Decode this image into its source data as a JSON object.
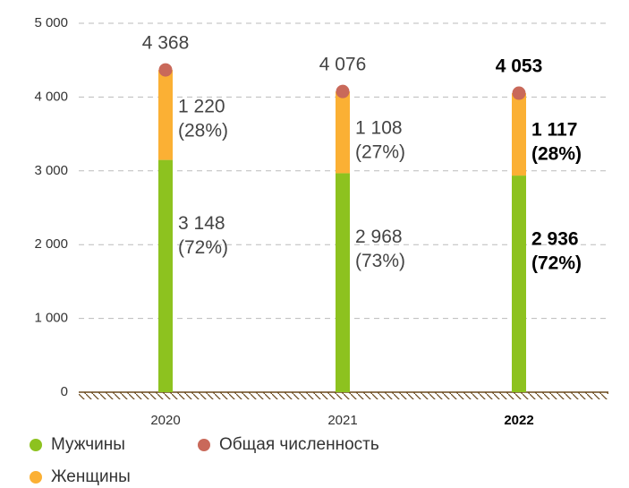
{
  "chart_data": {
    "type": "stacked_bar",
    "categories": [
      "2020",
      "2021",
      "2022"
    ],
    "series": [
      {
        "name": "Мужчины",
        "color": "#8dc21f",
        "values": [
          3148,
          2968,
          2936
        ],
        "value_labels": [
          "3 148",
          "2 968",
          "2 936"
        ],
        "percent_labels": [
          "(72%)",
          "(73%)",
          "(72%)"
        ]
      },
      {
        "name": "Женщины",
        "color": "#fbb034",
        "values": [
          1220,
          1108,
          1117
        ],
        "value_labels": [
          "1 220",
          "1 108",
          "1 117"
        ],
        "percent_labels": [
          "(28%)",
          "(27%)",
          "(28%)"
        ]
      }
    ],
    "total": {
      "name": "Общая численность",
      "color": "#c9695a",
      "values": [
        4368,
        4076,
        4053
      ],
      "value_labels": [
        "4 368",
        "4 076",
        "4 053"
      ]
    },
    "ylim": [
      0,
      5000
    ],
    "yticks": [
      0,
      {
        "value": 1000,
        "label": "1 000"
      },
      {
        "value": 2000,
        "label": "2 000"
      },
      {
        "value": 3000,
        "label": "3 000"
      },
      {
        "value": 4000,
        "label": "4 000"
      },
      {
        "value": 5000,
        "label": "5 000"
      }
    ],
    "grid": true
  }
}
